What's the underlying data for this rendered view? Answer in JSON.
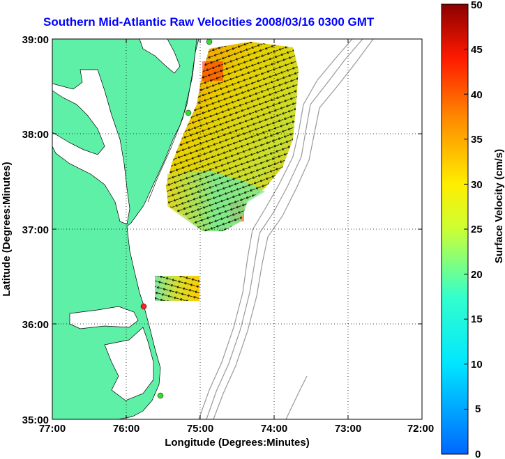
{
  "map": {
    "title": "Southern Mid-Atlantic Raw Velocities 2008/03/16 0300 GMT",
    "xlabel": "Longitude (Degrees:Minutes)",
    "ylabel": "Latitude (Degrees:Minutes)",
    "x_ticks": [
      "77:00",
      "76:00",
      "75:00",
      "74:00",
      "73:00",
      "72:00"
    ],
    "y_ticks": [
      "39:00",
      "38:00",
      "37:00",
      "36:00",
      "35:00"
    ],
    "land_color": "#5ff0a8",
    "bathymetry_color": "#999999",
    "grid_style": "dotted"
  },
  "colorbar": {
    "label": "Surface Velocity (cm/s)",
    "ticks": [
      "50",
      "45",
      "40",
      "35",
      "30",
      "25",
      "20",
      "15",
      "10",
      "5",
      "0"
    ],
    "range": [
      0,
      50
    ],
    "colormap": "jet"
  },
  "markers": [
    {
      "name": "station-north",
      "color": "#33dd33"
    },
    {
      "name": "station-mid",
      "color": "#33dd33"
    },
    {
      "name": "station-hatteras-red",
      "color": "#ff2222"
    },
    {
      "name": "station-south",
      "color": "#33dd33"
    }
  ]
}
